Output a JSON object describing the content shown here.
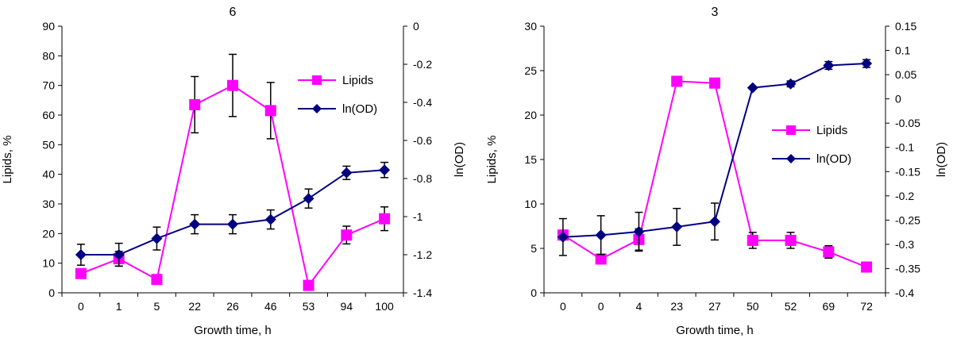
{
  "colors": {
    "lipids": "#ff00ff",
    "lnod": "#000080",
    "axis": "#000000",
    "error_bar": "#000000"
  },
  "chart_data": [
    {
      "type": "line",
      "title": "6",
      "xlabel": "Growth time, h",
      "ylabel_left": "Lipids, %",
      "ylabel_right": "ln(OD)",
      "categories": [
        "0",
        "1",
        "5",
        "22",
        "26",
        "46",
        "53",
        "94",
        "100"
      ],
      "y_left": {
        "min": 0,
        "max": 90,
        "step": 10,
        "ticks": [
          "0",
          "10",
          "20",
          "30",
          "40",
          "50",
          "60",
          "70",
          "80",
          "90"
        ]
      },
      "y_right": {
        "min": -1.4,
        "max": 0,
        "step": 0.2,
        "ticks": [
          "-1.4",
          "-1.2",
          "-1",
          "-0.8",
          "-0.6",
          "-0.4",
          "-0.2",
          "0"
        ]
      },
      "legend_position": "upper-right",
      "series": [
        {
          "name": "Lipids",
          "axis": "left",
          "marker": "square",
          "values": [
            6.5,
            11.5,
            4.5,
            63.5,
            70,
            61.5,
            2.5,
            19.5,
            25
          ],
          "errors": [
            0,
            2.5,
            0,
            9.5,
            10.5,
            9.5,
            0,
            3,
            4
          ]
        },
        {
          "name": "ln(OD)",
          "axis": "right",
          "marker": "diamond",
          "values": [
            -1.2,
            -1.2,
            -1.115,
            -1.04,
            -1.04,
            -1.015,
            -0.905,
            -0.77,
            -0.755
          ],
          "errors": [
            0.055,
            0.06,
            0.06,
            0.05,
            0.05,
            0.05,
            0.05,
            0.035,
            0.04
          ]
        }
      ]
    },
    {
      "type": "line",
      "title": "3",
      "xlabel": "Growth time, h",
      "ylabel_left": "Lipids, %",
      "ylabel_right": "ln(OD)",
      "categories": [
        "0",
        "0",
        "4",
        "23",
        "27",
        "50",
        "52",
        "69",
        "72"
      ],
      "y_left": {
        "min": 0,
        "max": 30,
        "step": 5,
        "ticks": [
          "0",
          "5",
          "10",
          "15",
          "20",
          "25",
          "30"
        ]
      },
      "y_right": {
        "min": -0.4,
        "max": 0.15,
        "step": 0.05,
        "ticks": [
          "-0.4",
          "-0.35",
          "-0.3",
          "-0.25",
          "-0.2",
          "-0.15",
          "-0.1",
          "-0.05",
          "0",
          "0.05",
          "0.1",
          "0.15"
        ]
      },
      "legend_position": "right-middle",
      "series": [
        {
          "name": "Lipids",
          "axis": "left",
          "marker": "square",
          "values": [
            6.5,
            3.8,
            6.0,
            23.8,
            23.6,
            5.9,
            5.9,
            4.6,
            2.9
          ],
          "errors": [
            0,
            0,
            1.2,
            0,
            0,
            0.9,
            0.9,
            0.7,
            0
          ]
        },
        {
          "name": "ln(OD)",
          "axis": "right",
          "marker": "diamond",
          "values": [
            -0.285,
            -0.281,
            -0.274,
            -0.264,
            -0.253,
            0.023,
            0.031,
            0.069,
            0.073
          ],
          "errors": [
            0.038,
            0.04,
            0.04,
            0.038,
            0.038,
            0,
            0.006,
            0.008,
            0.008
          ]
        }
      ]
    }
  ]
}
